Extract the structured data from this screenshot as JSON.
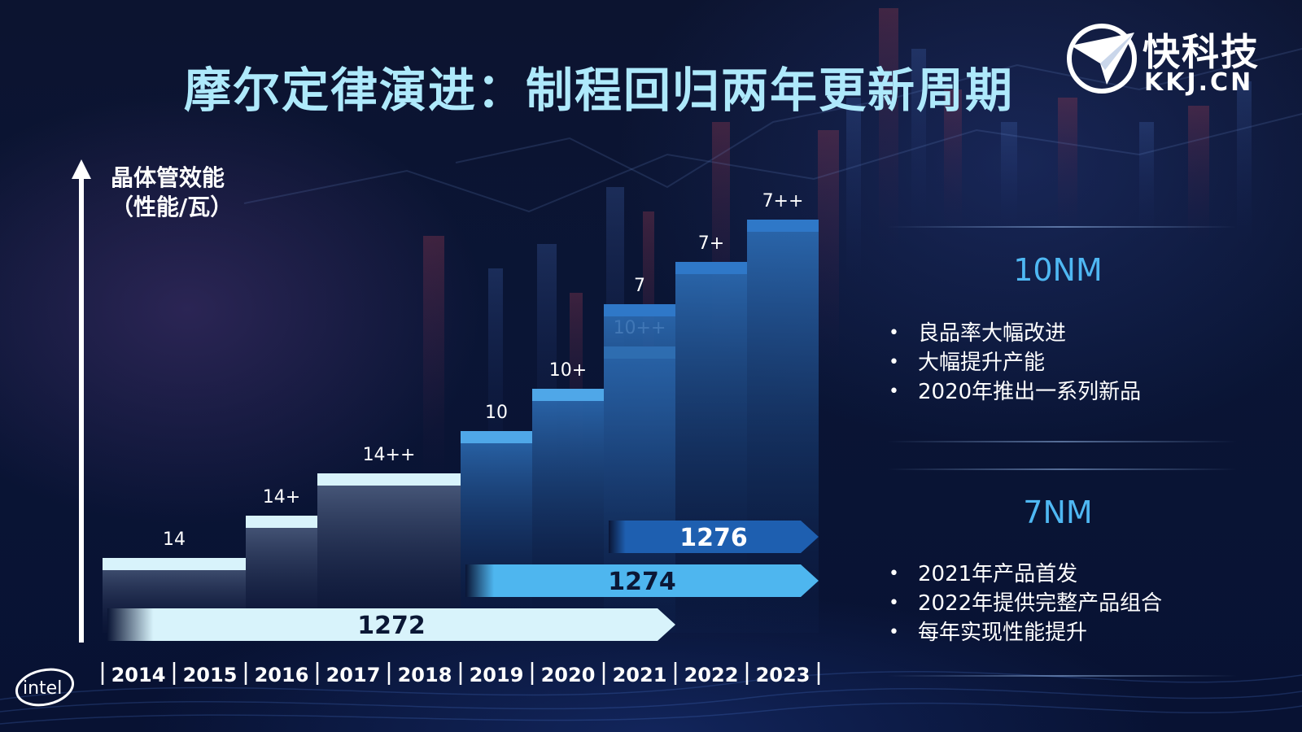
{
  "slide": {
    "title": "摩尔定律演进：制程回归两年更新周期",
    "logo": {
      "cn": "快科技",
      "en": "KKJ.CN",
      "icon": "paper-plane-icon"
    },
    "brand": {
      "text": "intel",
      "icon": "intel-logo"
    }
  },
  "chart_data": {
    "type": "step",
    "ylabel_lines": [
      "晶体管效能",
      "（性能/瓦）"
    ],
    "xlabel": "",
    "categories": [
      "2014",
      "2015",
      "2016",
      "2017",
      "2018",
      "2019",
      "2020",
      "2021",
      "2022",
      "2023"
    ],
    "nodes": [
      {
        "label": "14",
        "start_year": "2014",
        "end_year": "2015",
        "level": 1
      },
      {
        "label": "14+",
        "start_year": "2016",
        "end_year": "2016",
        "level": 2
      },
      {
        "label": "14++",
        "start_year": "2017",
        "end_year": "2018",
        "level": 3
      },
      {
        "label": "10",
        "start_year": "2019",
        "end_year": "2019",
        "level": 4
      },
      {
        "label": "10+",
        "start_year": "2020",
        "end_year": "2020",
        "level": 5
      },
      {
        "label": "10++",
        "start_year": "2021",
        "end_year": "2021",
        "level": 6
      },
      {
        "label": "7",
        "start_year": "2021",
        "end_year": "2021",
        "level": 7
      },
      {
        "label": "7+",
        "start_year": "2022",
        "end_year": "2022",
        "level": 8
      },
      {
        "label": "7++",
        "start_year": "2023",
        "end_year": "2023",
        "level": 9
      }
    ],
    "arrows": [
      {
        "label": "1272",
        "start_year": "2014",
        "end_year": "2021",
        "color": "#d8f3fb"
      },
      {
        "label": "1274",
        "start_year": "2019",
        "end_year": "2023",
        "color": "#4eb6ef"
      },
      {
        "label": "1276",
        "start_year": "2021",
        "end_year": "2023",
        "color": "#1e5fb0"
      }
    ],
    "colors": {
      "accent": "#4fb8f3",
      "light": "#d8f3fb",
      "dark": "#1e5fb0"
    }
  },
  "panel": {
    "sections": [
      {
        "heading": "10NM",
        "items": [
          "良品率大幅改进",
          "大幅提升产能",
          "2020年推出一系列新品"
        ]
      },
      {
        "heading": "7NM",
        "items": [
          "2021年产品首发",
          "2022年提供完整产品组合",
          "每年实现性能提升"
        ]
      }
    ],
    "bullet": "•"
  }
}
